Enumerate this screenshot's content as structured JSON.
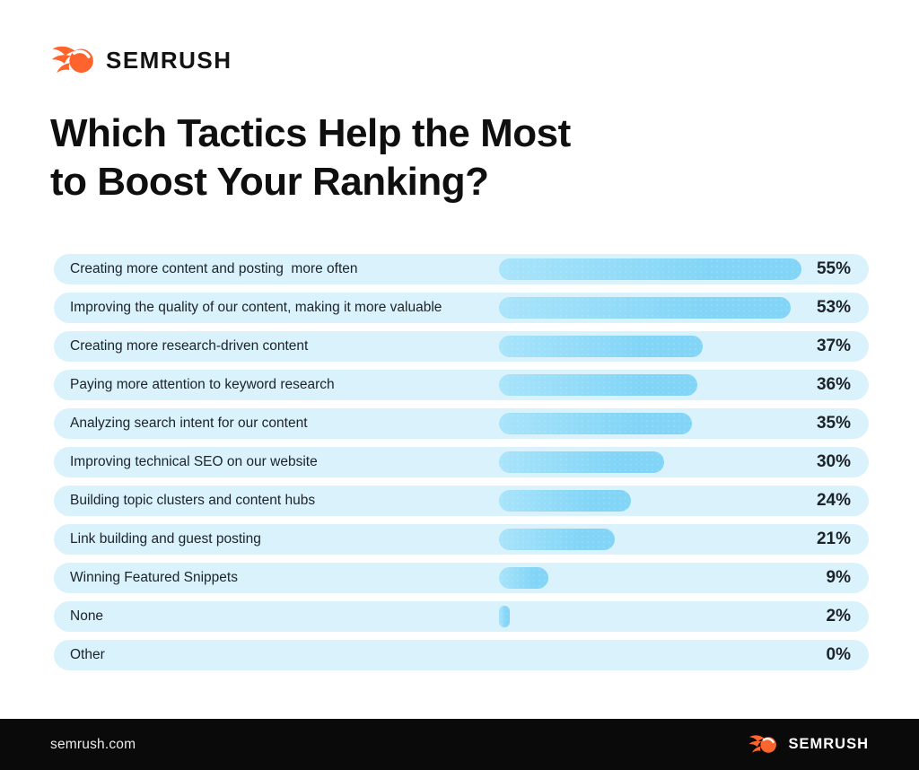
{
  "header": {
    "logo_text": "SEMRUSH"
  },
  "title": {
    "line1": "Which Tactics Help the Most",
    "line2": "to Boost Your Ranking?"
  },
  "footer": {
    "site": "semrush.com",
    "logo_text": "SEMRUSH"
  },
  "brand": {
    "orange": "#ff642d"
  },
  "chart_data": {
    "type": "bar",
    "orientation": "horizontal",
    "title": "Which Tactics Help the Most to Boost Your Ranking?",
    "unit": "%",
    "categories": [
      "Creating more content and posting  more often",
      "Improving the quality of our content, making it more valuable",
      "Creating more research-driven content",
      "Paying more attention to keyword research",
      "Analyzing search intent for our content",
      "Improving technical SEO on our website",
      "Building topic clusters and content hubs",
      "Link building and guest posting",
      "Winning Featured Snippets",
      "None",
      "Other"
    ],
    "values": [
      55,
      53,
      37,
      36,
      35,
      30,
      24,
      21,
      9,
      2,
      0
    ],
    "value_labels": [
      "55%",
      "53%",
      "37%",
      "36%",
      "35%",
      "30%",
      "24%",
      "21%",
      "9%",
      "2%",
      "0%"
    ],
    "xlim": [
      0,
      60
    ],
    "grid": false,
    "legend": false,
    "colors": {
      "row_bg": "#d9f2fc",
      "bar_gradient_start": "#a9e4fa",
      "bar_gradient_end": "#82d5f7",
      "label_text": "#1d2329",
      "value_text": "#1d2329",
      "title_text": "#0f0f0f",
      "footer_bg": "#0a0a0a",
      "brand_orange": "#ff642d"
    }
  }
}
